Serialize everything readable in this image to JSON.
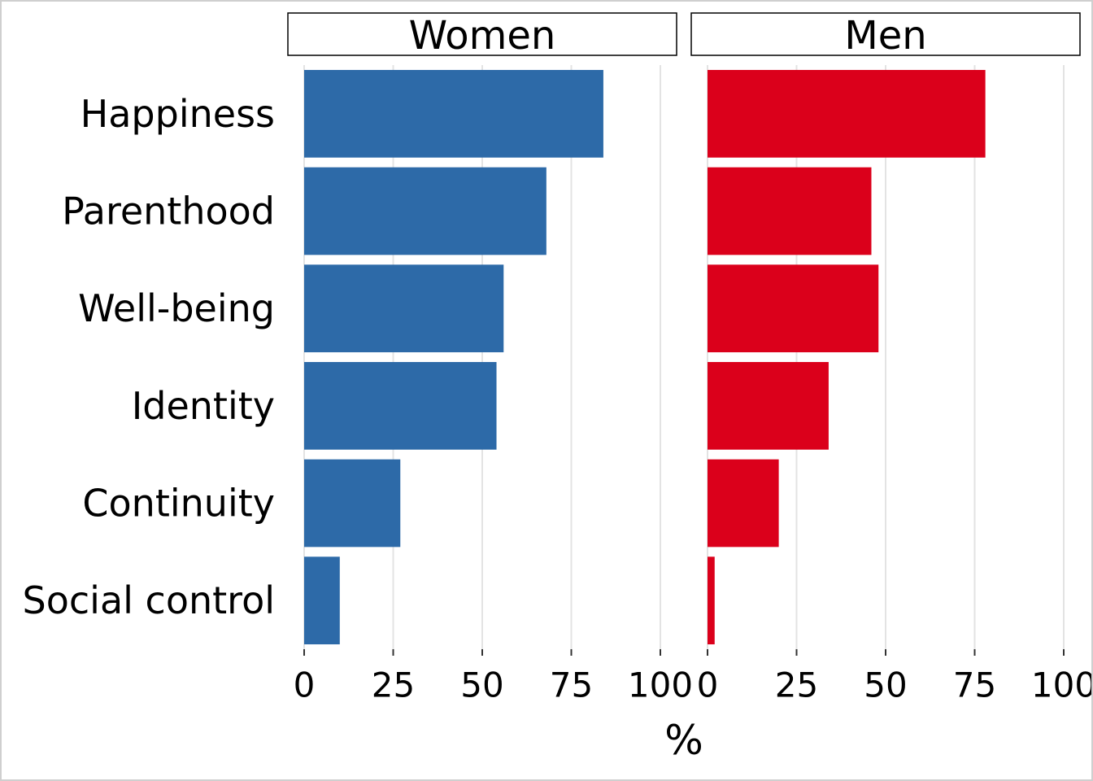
{
  "chart_data": {
    "type": "bar",
    "orientation": "horizontal",
    "categories": [
      "Happiness",
      "Parenthood",
      "Well-being",
      "Identity",
      "Continuity",
      "Social control"
    ],
    "series": [
      {
        "name": "Women",
        "values": [
          84,
          68,
          56,
          54,
          27,
          10
        ],
        "color": "#2d6aa8"
      },
      {
        "name": "Men",
        "values": [
          78,
          46,
          48,
          34,
          20,
          2
        ],
        "color": "#db001b"
      }
    ],
    "xlabel": "%",
    "ylabel": "",
    "xlim": [
      0,
      100
    ],
    "xticks": [
      0,
      25,
      50,
      75,
      100
    ],
    "xtick_labels": [
      "0",
      "25",
      "50",
      "75",
      "100"
    ],
    "grid": "vertical",
    "legend": "none",
    "facets": "side-by-side"
  }
}
